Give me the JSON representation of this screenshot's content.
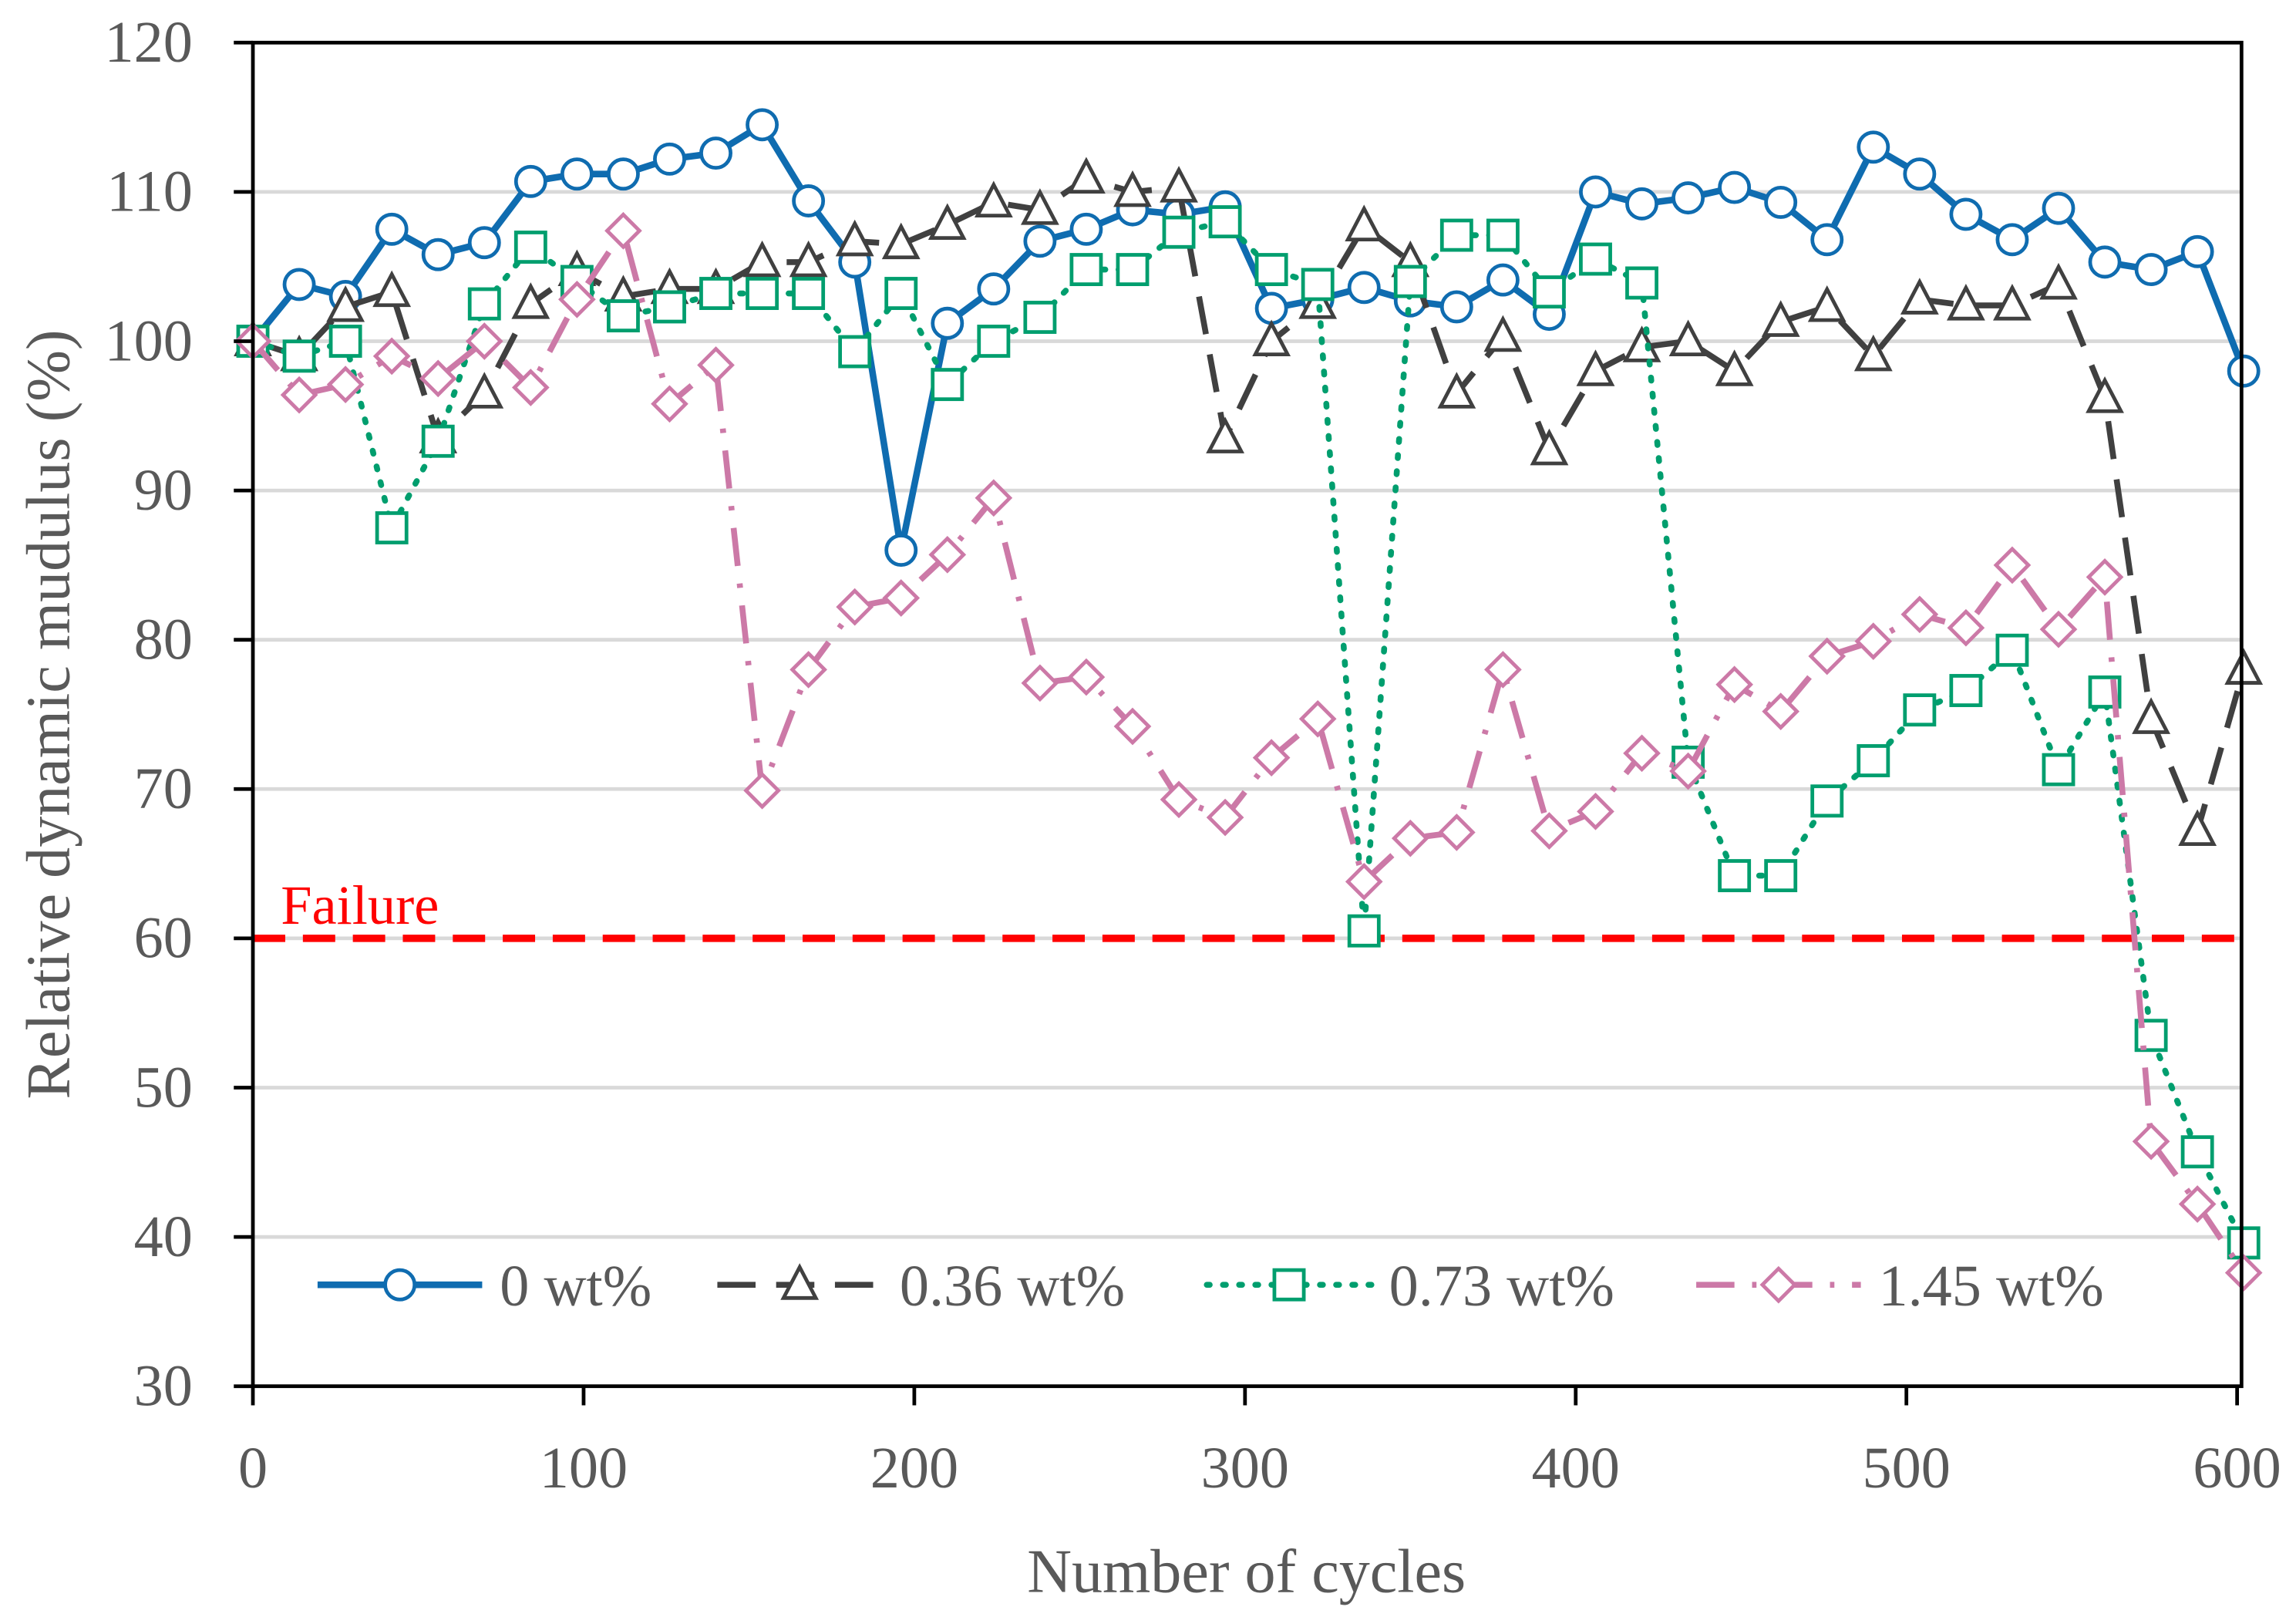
{
  "chart_data": {
    "type": "line",
    "title": "",
    "xlabel": "Number of cycles",
    "ylabel": "Relative dynamic mudulus (%)",
    "xlim": [
      0,
      600
    ],
    "ylim": [
      30,
      120
    ],
    "xticks": [
      0,
      100,
      200,
      300,
      400,
      500,
      600
    ],
    "yticks": [
      30,
      40,
      50,
      60,
      70,
      80,
      90,
      100,
      110,
      120
    ],
    "grid": "horizontal",
    "legend_position": "bottom",
    "x": [
      0,
      14,
      28,
      42,
      56,
      70,
      84,
      98,
      112,
      126,
      140,
      154,
      168,
      182,
      196,
      210,
      224,
      238,
      252,
      266,
      280,
      294,
      308,
      322,
      336,
      350,
      364,
      378,
      392,
      406,
      420,
      434,
      448,
      462,
      476,
      490,
      504,
      518,
      532,
      546,
      560,
      574,
      588,
      602
    ],
    "series": [
      {
        "name": "0 wt%",
        "color": "#0f6cb0",
        "marker": "circle",
        "dash": "solid",
        "values": [
          100,
          103.8,
          103,
          107.5,
          105.8,
          106.6,
          110.7,
          111.2,
          111.2,
          112.2,
          112.6,
          114.5,
          109.4,
          105.3,
          86,
          101.2,
          103.5,
          106.7,
          107.5,
          108.8,
          108.5,
          109,
          102.2,
          102.8,
          103.6,
          102.7,
          102.3,
          104.1,
          101.8,
          110,
          109.2,
          109.6,
          110.3,
          109.3,
          106.8,
          113,
          111.2,
          108.5,
          106.8,
          108.9,
          105.3,
          104.8,
          106,
          98
        ]
      },
      {
        "name": "0.36 wt%",
        "color": "#404040",
        "marker": "triangle",
        "dash": "dashed",
        "values": [
          100,
          99,
          102.3,
          103.3,
          93.5,
          96.5,
          102.5,
          104.7,
          103,
          103.5,
          103.5,
          105.3,
          105.3,
          106.7,
          106.5,
          107.8,
          109.3,
          108.8,
          110.9,
          110,
          110.3,
          93.5,
          100,
          102.5,
          107.7,
          105.3,
          96.5,
          100.3,
          92.7,
          98,
          99.6,
          100,
          98,
          101.3,
          102.3,
          99,
          102.8,
          102.4,
          102.4,
          103.8,
          96.2,
          74.7,
          67.2,
          78
        ]
      },
      {
        "name": "0.73 wt%",
        "color": "#009e6e",
        "marker": "square",
        "dash": "dotted",
        "values": [
          100,
          99,
          100,
          87.5,
          93.3,
          102.5,
          106.3,
          104,
          101.7,
          102.3,
          103.2,
          103.2,
          103.2,
          99.3,
          103.2,
          97.1,
          100,
          101.6,
          104.8,
          104.8,
          107.3,
          108,
          104.8,
          103.8,
          60.5,
          104,
          107.1,
          107.1,
          103.3,
          105.5,
          103.9,
          71.8,
          64.2,
          64.2,
          69.2,
          71.9,
          75.3,
          76.6,
          79.3,
          71.3,
          76.5,
          53.5,
          45.7,
          39.6
        ]
      },
      {
        "name": "1.45 wt%",
        "color": "#cc79a7",
        "marker": "diamond",
        "dash": "dashdot",
        "values": [
          100,
          96.4,
          97.1,
          99,
          97.5,
          100,
          96.9,
          102.8,
          107.4,
          95.8,
          98.4,
          69.9,
          78,
          82.2,
          82.8,
          85.7,
          89.5,
          77.1,
          77.5,
          74.2,
          69.3,
          68.1,
          72.1,
          74.7,
          63.8,
          66.7,
          67.1,
          78,
          67.2,
          68.5,
          72.4,
          71.2,
          77,
          75.2,
          78.9,
          79.9,
          81.7,
          80.8,
          85,
          80.7,
          84.2,
          46.4,
          42.2,
          37.6
        ]
      }
    ],
    "annotations": [
      {
        "text": "Failure",
        "y": 60,
        "color": "#ff0000"
      }
    ]
  }
}
